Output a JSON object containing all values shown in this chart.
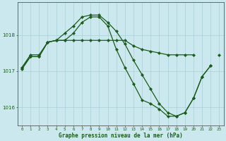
{
  "xlabel": "Graphe pression niveau de la mer (hPa)",
  "background_color": "#cce8ef",
  "grid_color": "#aacfd8",
  "line_color": "#1a5c1a",
  "hours": [
    0,
    1,
    2,
    3,
    4,
    5,
    6,
    7,
    8,
    9,
    10,
    11,
    12,
    13,
    14,
    15,
    16,
    17,
    18,
    19,
    20,
    21,
    22,
    23
  ],
  "line1": [
    1017.1,
    1017.45,
    1017.45,
    1017.8,
    1017.85,
    1017.85,
    1017.85,
    1017.85,
    1017.85,
    1017.85,
    1017.85,
    1017.85,
    1017.85,
    1017.7,
    1017.6,
    1017.55,
    1017.5,
    1017.45,
    1017.45,
    1017.45,
    1017.45,
    null,
    null,
    1017.45
  ],
  "line2": [
    1017.05,
    1017.4,
    1017.4,
    1017.8,
    1017.85,
    1018.05,
    1018.25,
    1018.5,
    1018.55,
    1018.55,
    1018.35,
    1018.1,
    1017.75,
    1017.3,
    1016.9,
    1016.5,
    1016.1,
    1015.85,
    1015.75,
    1015.85,
    1016.25,
    1016.85,
    1017.15,
    null
  ],
  "line3": [
    1017.1,
    1017.4,
    1017.4,
    1017.8,
    1017.85,
    1017.85,
    1018.05,
    1018.35,
    1018.5,
    1018.5,
    1018.25,
    1017.6,
    1017.1,
    1016.65,
    1016.2,
    1016.1,
    1015.95,
    1015.75,
    1015.75,
    1015.85,
    1016.25,
    1016.85,
    1017.15,
    null
  ],
  "ylim": [
    1015.5,
    1018.9
  ],
  "yticks": [
    1016,
    1017,
    1018
  ],
  "xticks": [
    0,
    1,
    2,
    3,
    4,
    5,
    6,
    7,
    8,
    9,
    10,
    11,
    12,
    13,
    14,
    15,
    16,
    17,
    18,
    19,
    20,
    21,
    22,
    23
  ]
}
